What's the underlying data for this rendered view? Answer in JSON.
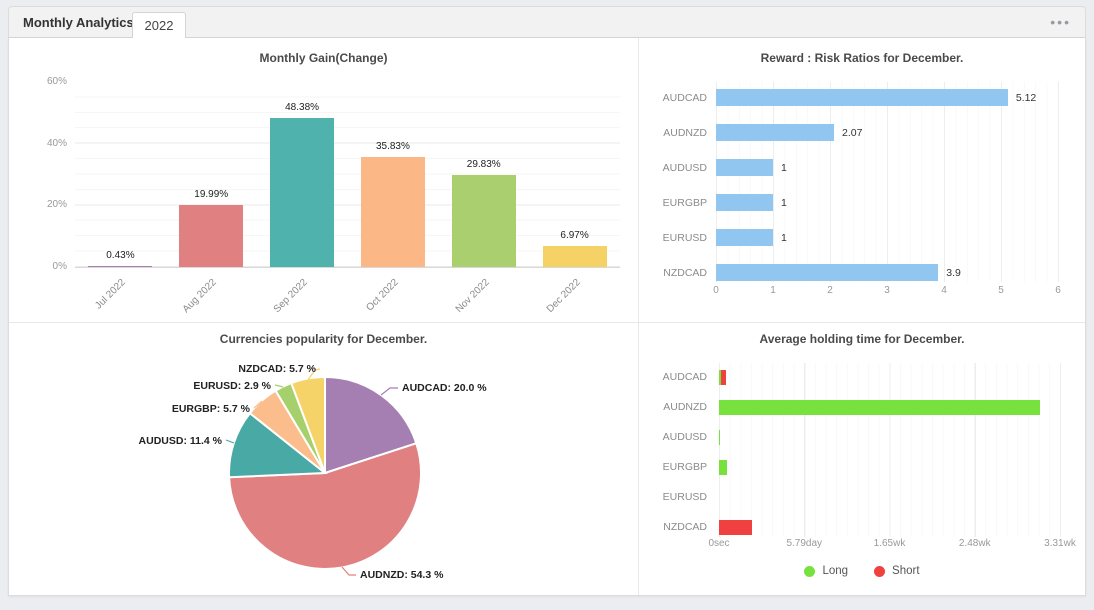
{
  "ui": {
    "window_title": "Monthly Analytics",
    "tab_label": "2022",
    "menu_icon": "ellipsis-icon",
    "menu_glyph": "•••"
  },
  "chart_data": [
    {
      "id": "monthly_gain",
      "type": "bar",
      "orientation": "vertical",
      "title": "Monthly Gain(Change)",
      "categories": [
        "Jul 2022",
        "Aug 2022",
        "Sep 2022",
        "Oct 2022",
        "Nov 2022",
        "Dec 2022"
      ],
      "values": [
        0.43,
        19.99,
        48.38,
        35.83,
        29.83,
        6.97
      ],
      "value_labels": [
        "0.43%",
        "19.99%",
        "48.38%",
        "35.83%",
        "29.83%",
        "6.97%"
      ],
      "bar_colors": [
        "#a57fb2",
        "#e08081",
        "#4fb2ac",
        "#fcb787",
        "#a9cf6e",
        "#f5d266"
      ],
      "y_ticks": [
        "0%",
        "20%",
        "40%",
        "60%"
      ],
      "y_tick_values": [
        0,
        20,
        40,
        60
      ],
      "ylim": [
        0,
        60
      ],
      "xlabel": "",
      "ylabel": "",
      "grid": true
    },
    {
      "id": "reward_risk",
      "type": "bar",
      "orientation": "horizontal",
      "title": "Reward : Risk Ratios for December.",
      "categories": [
        "AUDCAD",
        "AUDNZD",
        "AUDUSD",
        "EURGBP",
        "EURUSD",
        "NZDCAD"
      ],
      "values": [
        5.12,
        2.07,
        1,
        1,
        1,
        3.9
      ],
      "value_labels": [
        "5.12",
        "2.07",
        "1",
        "1",
        "1",
        "3.9"
      ],
      "bar_color": "#91c6f0",
      "x_ticks": [
        "0",
        "1",
        "2",
        "3",
        "4",
        "5",
        "6"
      ],
      "xlim": [
        0,
        6
      ],
      "grid": true
    },
    {
      "id": "currencies_popularity",
      "type": "pie",
      "title": "Currencies popularity for December.",
      "categories": [
        "AUDCAD",
        "AUDNZD",
        "AUDUSD",
        "EURGBP",
        "EURUSD",
        "NZDCAD"
      ],
      "values": [
        20.0,
        54.3,
        11.4,
        5.7,
        2.9,
        5.7
      ],
      "slice_labels": [
        "AUDCAD: 20.0 %",
        "AUDNZD: 54.3 %",
        "AUDUSD: 11.4 %",
        "EURGBP: 5.7 %",
        "EURUSD: 2.9 %",
        "NZDCAD: 5.7 %"
      ],
      "colors": [
        "#a57fb2",
        "#e08081",
        "#48a9a5",
        "#fcbd8c",
        "#a6d06b",
        "#f6d368"
      ],
      "start_angle": "12-oclock-clockwise"
    },
    {
      "id": "holding_time",
      "type": "bar",
      "orientation": "horizontal",
      "title": "Average holding time for December.",
      "categories": [
        "AUDCAD",
        "AUDNZD",
        "AUDUSD",
        "EURGBP",
        "EURUSD",
        "NZDCAD"
      ],
      "series": [
        {
          "name": "Long",
          "color": "#77e23d",
          "values_days": [
            0.14,
            21.8,
            0.1,
            0.55,
            0,
            0
          ]
        },
        {
          "name": "Short",
          "color": "#f04141",
          "values_days": [
            0.46,
            0,
            0,
            0,
            0,
            2.27
          ]
        }
      ],
      "x_ticks": [
        "0sec",
        "5.79day",
        "1.65wk",
        "2.48wk",
        "3.31wk"
      ],
      "xlim_days": [
        0,
        23.16
      ],
      "legend_position": "bottom",
      "grid": true
    }
  ]
}
